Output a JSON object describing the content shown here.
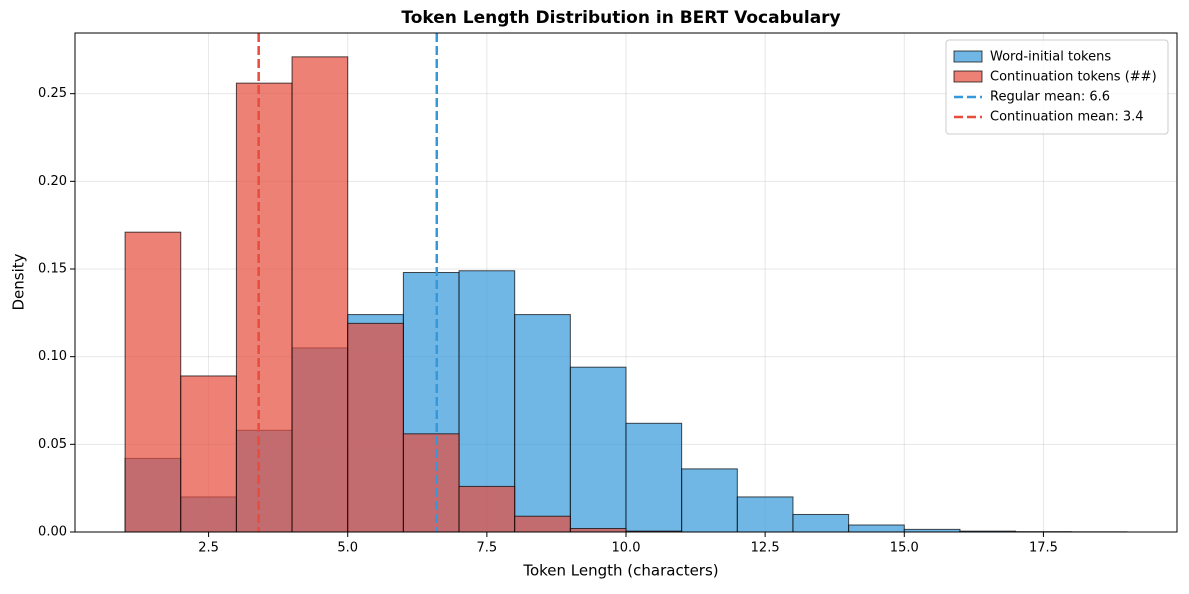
{
  "chart_data": {
    "type": "histogram",
    "title": "Token Length Distribution in BERT Vocabulary",
    "x_label": "Token Length (characters)",
    "y_label": "Density",
    "bins": [
      1,
      2,
      3,
      4,
      5,
      6,
      7,
      8,
      9,
      10,
      11,
      12,
      13,
      14,
      15,
      16,
      17,
      18,
      19
    ],
    "series": [
      {
        "name": "Word-initial tokens",
        "color": "#3498db",
        "values": [
          0.042,
          0.02,
          0.058,
          0.105,
          0.124,
          0.148,
          0.149,
          0.124,
          0.094,
          0.062,
          0.036,
          0.02,
          0.01,
          0.004,
          0.0015,
          0.0005,
          0.0002,
          0.0001
        ]
      },
      {
        "name": "Continuation tokens (##)",
        "color": "#e74c3c",
        "values": [
          0.171,
          0.089,
          0.256,
          0.271,
          0.119,
          0.056,
          0.026,
          0.009,
          0.002,
          0.0005,
          0,
          0,
          0,
          0,
          0,
          0,
          0,
          0
        ]
      }
    ],
    "vlines": [
      {
        "name": "Regular mean: 6.6",
        "value": 6.6,
        "color": "#3498db"
      },
      {
        "name": "Continuation mean: 3.4",
        "value": 3.4,
        "color": "#e74c3c"
      }
    ],
    "xlim": [
      0.1,
      19.9
    ],
    "ylim": [
      0,
      0.2846
    ],
    "xticks": [
      2.5,
      {
        "value": 5,
        "label": "5.0"
      },
      7.5,
      {
        "value": 10,
        "label": "10.0"
      },
      12.5,
      {
        "value": 15,
        "label": "15.0"
      },
      17.5
    ],
    "yticks": [
      {
        "value": 0,
        "label": "0.00"
      },
      0.05,
      {
        "value": 0.1,
        "label": "0.10"
      },
      0.15,
      {
        "value": 0.2,
        "label": "0.20"
      },
      0.25
    ],
    "grid": true,
    "legend": "upper right"
  }
}
